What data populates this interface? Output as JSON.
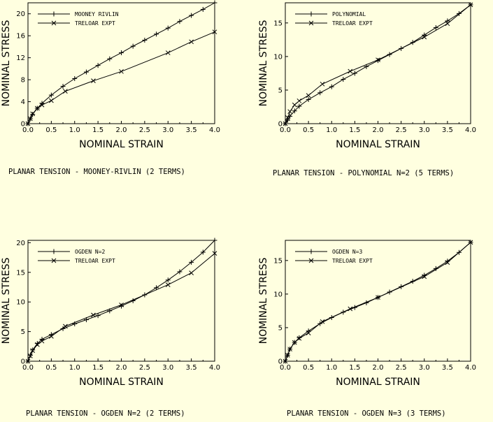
{
  "chart_data": [
    {
      "type": "line",
      "caption": "PLANAR TENSION - MOONEY-RIVLIN (2 TERMS)",
      "xlabel": "NOMINAL STRAIN",
      "ylabel": "NOMINAL STRESS",
      "xlim": [
        0,
        4
      ],
      "ylim": [
        0,
        22
      ],
      "xticks": [
        "0.0",
        "0.5",
        "1.0",
        "1.5",
        "2.0",
        "2.5",
        "3.0",
        "3.5",
        "4.0"
      ],
      "yticks": [
        "0",
        "4",
        "8",
        "12",
        "16",
        "20"
      ],
      "ytick_values": [
        0,
        4,
        8,
        12,
        16,
        20
      ],
      "legend_position": "top-left",
      "series": [
        {
          "name": "MOONEY RIVLIN",
          "marker": "+",
          "x": [
            0,
            0.05,
            0.1,
            0.2,
            0.3,
            0.5,
            0.75,
            1.0,
            1.25,
            1.5,
            1.75,
            2.0,
            2.25,
            2.5,
            2.75,
            3.0,
            3.25,
            3.5,
            3.75,
            4.0
          ],
          "y": [
            0,
            0.9,
            1.7,
            2.8,
            3.7,
            5.2,
            6.8,
            8.2,
            9.4,
            10.6,
            11.8,
            12.9,
            14.1,
            15.2,
            16.3,
            17.4,
            18.6,
            19.7,
            20.8,
            22.0
          ]
        },
        {
          "name": "TRELOAR EXPT",
          "marker": "x",
          "x": [
            0,
            0.05,
            0.1,
            0.2,
            0.3,
            0.5,
            0.8,
            1.4,
            2.0,
            3.0,
            3.5,
            4.0
          ],
          "y": [
            0,
            0.9,
            1.8,
            2.8,
            3.4,
            4.2,
            5.9,
            7.8,
            9.5,
            12.9,
            14.9,
            16.7
          ]
        }
      ]
    },
    {
      "type": "line",
      "caption": "PLANAR TENSION - POLYNOMIAL N=2 (5 TERMS)",
      "xlabel": "NOMINAL STRAIN",
      "ylabel": "NOMINAL STRESS",
      "xlim": [
        0,
        4
      ],
      "ylim": [
        0,
        18
      ],
      "xticks": [
        "0.0",
        "0.5",
        "1.0",
        "1.5",
        "2.0",
        "2.5",
        "3.0",
        "3.5",
        "4.0"
      ],
      "yticks": [
        "0",
        "5",
        "10",
        "15"
      ],
      "ytick_values": [
        0,
        5,
        10,
        15
      ],
      "legend_position": "top-left",
      "series": [
        {
          "name": "POLYNOMIAL",
          "marker": "+",
          "x": [
            0,
            0.05,
            0.1,
            0.2,
            0.3,
            0.5,
            0.75,
            1.0,
            1.25,
            1.5,
            1.75,
            2.0,
            2.25,
            2.5,
            2.75,
            3.0,
            3.25,
            3.5,
            3.75,
            4.0
          ],
          "y": [
            0,
            0.5,
            1.1,
            1.9,
            2.6,
            3.6,
            4.6,
            5.5,
            6.6,
            7.5,
            8.5,
            9.4,
            10.3,
            11.2,
            12.1,
            13.2,
            14.3,
            15.3,
            16.4,
            17.7
          ]
        },
        {
          "name": "TRELOAR EXPT",
          "marker": "x",
          "x": [
            0,
            0.05,
            0.1,
            0.2,
            0.3,
            0.5,
            0.8,
            1.4,
            2.0,
            3.0,
            3.5,
            4.0
          ],
          "y": [
            0,
            0.9,
            1.8,
            2.8,
            3.4,
            4.2,
            5.9,
            7.8,
            9.5,
            12.9,
            14.9,
            17.7
          ]
        }
      ]
    },
    {
      "type": "line",
      "caption": "PLANAR TENSION - OGDEN N=2 (2 TERMS)",
      "xlabel": "NOMINAL STRAIN",
      "ylabel": "NOMINAL STRESS",
      "xlim": [
        0,
        4
      ],
      "ylim": [
        0,
        20.4
      ],
      "xticks": [
        "0.0",
        "0.5",
        "1.0",
        "1.5",
        "2.0",
        "2.5",
        "3.0",
        "3.5",
        "4.0"
      ],
      "yticks": [
        "0",
        "5",
        "10",
        "15",
        "20"
      ],
      "ytick_values": [
        0,
        5,
        10,
        15,
        20
      ],
      "legend_position": "top-left",
      "series": [
        {
          "name": "OGDEN N=2",
          "marker": "+",
          "x": [
            0,
            0.05,
            0.1,
            0.2,
            0.3,
            0.5,
            0.75,
            1.0,
            1.25,
            1.5,
            1.75,
            2.0,
            2.25,
            2.5,
            2.75,
            3.0,
            3.25,
            3.5,
            3.75,
            4.0
          ],
          "y": [
            0,
            1.0,
            1.9,
            3.0,
            3.7,
            4.5,
            5.5,
            6.3,
            7.0,
            7.7,
            8.5,
            9.3,
            10.2,
            11.2,
            12.4,
            13.7,
            15.1,
            16.7,
            18.4,
            20.4
          ]
        },
        {
          "name": "TRELOAR EXPT",
          "marker": "x",
          "x": [
            0,
            0.05,
            0.1,
            0.2,
            0.3,
            0.5,
            0.8,
            1.4,
            2.0,
            3.0,
            3.5,
            4.0
          ],
          "y": [
            0,
            0.9,
            1.8,
            2.8,
            3.4,
            4.2,
            5.9,
            7.8,
            9.5,
            12.9,
            14.9,
            18.2
          ]
        }
      ]
    },
    {
      "type": "line",
      "caption": "PLANAR TENSION - OGDEN N=3 (3 TERMS)",
      "xlabel": "NOMINAL STRAIN",
      "ylabel": "NOMINAL STRESS",
      "xlim": [
        0,
        4
      ],
      "ylim": [
        0,
        18
      ],
      "xticks": [
        "0.0",
        "0.5",
        "1.0",
        "1.5",
        "2.0",
        "2.5",
        "3.0",
        "3.5",
        "4.0"
      ],
      "yticks": [
        "0",
        "5",
        "10",
        "15"
      ],
      "ytick_values": [
        0,
        5,
        10,
        15
      ],
      "legend_position": "top-left",
      "series": [
        {
          "name": "OGDEN N=3",
          "marker": "+",
          "x": [
            0,
            0.05,
            0.1,
            0.2,
            0.3,
            0.5,
            0.75,
            1.0,
            1.25,
            1.5,
            1.75,
            2.0,
            2.25,
            2.5,
            2.75,
            3.0,
            3.25,
            3.5,
            3.75,
            4.0
          ],
          "y": [
            0,
            0.9,
            1.8,
            2.8,
            3.5,
            4.5,
            5.6,
            6.5,
            7.3,
            8.0,
            8.7,
            9.5,
            10.3,
            11.1,
            11.9,
            12.8,
            13.8,
            14.9,
            16.2,
            17.7
          ]
        },
        {
          "name": "TRELOAR EXPT",
          "marker": "x",
          "x": [
            0,
            0.05,
            0.1,
            0.2,
            0.3,
            0.5,
            0.8,
            1.4,
            2.0,
            3.0,
            3.5,
            4.0
          ],
          "y": [
            0,
            0.9,
            1.8,
            2.8,
            3.4,
            4.2,
            5.9,
            7.8,
            9.5,
            12.6,
            14.7,
            17.7
          ]
        }
      ]
    }
  ]
}
